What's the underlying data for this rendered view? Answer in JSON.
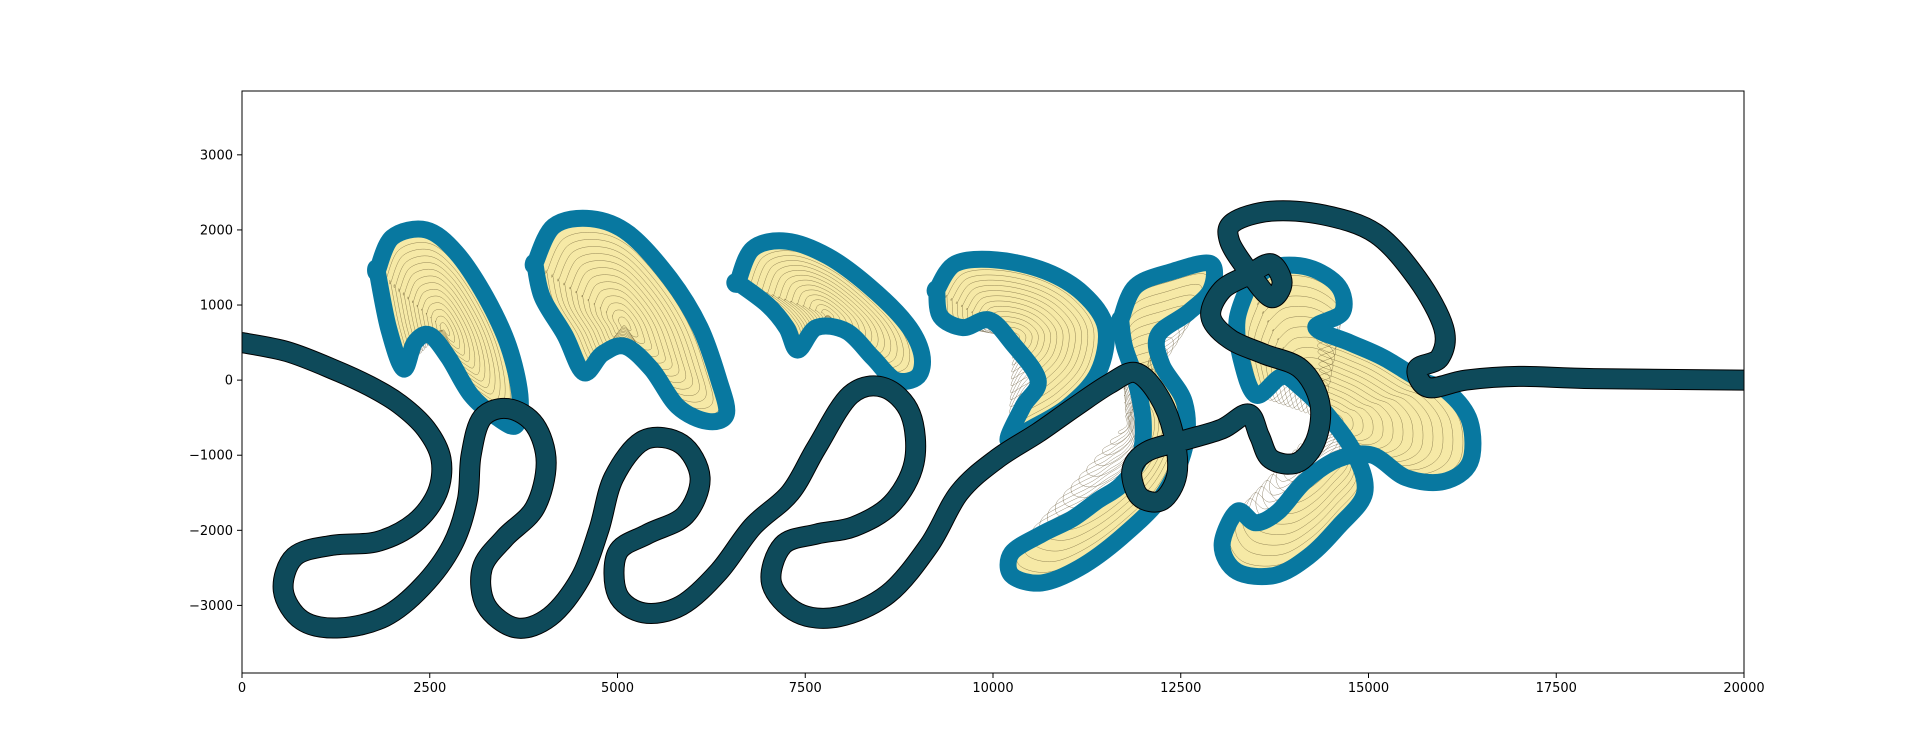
{
  "chart_data": {
    "type": "line",
    "title": "",
    "xlabel": "",
    "ylabel": "",
    "xlim": [
      0,
      20000
    ],
    "ylim": [
      -3900,
      3850
    ],
    "x_ticks": [
      0,
      2500,
      5000,
      7500,
      10000,
      12500,
      15000,
      17500,
      20000
    ],
    "x_tick_labels": [
      "0",
      "2500",
      "5000",
      "7500",
      "10000",
      "12500",
      "15000",
      "17500",
      "20000"
    ],
    "y_ticks": [
      3000,
      2000,
      1000,
      0,
      -1000,
      -2000,
      -3000
    ],
    "y_tick_labels": [
      "3000",
      "2000",
      "1000",
      "0",
      "−1000",
      "−2000",
      "−3000"
    ],
    "grid": false,
    "legend": "none",
    "colors": {
      "fill": "#f6e9a6",
      "fill_line": "#5a4a24",
      "channel_dark": "#0e4a5a",
      "channel_light": "#0878a0"
    },
    "series": [
      {
        "values": [
          [
            0,
            500
          ],
          [
            600,
            380
          ],
          [
            1200,
            150
          ],
          [
            1700,
            -80
          ],
          [
            2100,
            -320
          ],
          [
            2450,
            -650
          ],
          [
            2650,
            -1050
          ],
          [
            2600,
            -1500
          ],
          [
            2300,
            -1900
          ],
          [
            1800,
            -2150
          ],
          [
            1200,
            -2200
          ],
          [
            700,
            -2350
          ],
          [
            550,
            -2800
          ],
          [
            800,
            -3200
          ],
          [
            1300,
            -3300
          ],
          [
            1900,
            -3150
          ],
          [
            2400,
            -2750
          ],
          [
            2800,
            -2200
          ],
          [
            3000,
            -1600
          ],
          [
            3050,
            -1000
          ],
          [
            3200,
            -500
          ],
          [
            3550,
            -380
          ],
          [
            3900,
            -600
          ],
          [
            4050,
            -1100
          ],
          [
            3900,
            -1700
          ],
          [
            3500,
            -2100
          ],
          [
            3200,
            -2500
          ],
          [
            3250,
            -3000
          ],
          [
            3650,
            -3300
          ],
          [
            4100,
            -3150
          ],
          [
            4500,
            -2650
          ],
          [
            4750,
            -2000
          ],
          [
            4950,
            -1300
          ],
          [
            5350,
            -800
          ],
          [
            5850,
            -850
          ],
          [
            6100,
            -1300
          ],
          [
            5900,
            -1800
          ],
          [
            5400,
            -2050
          ],
          [
            5000,
            -2300
          ],
          [
            5000,
            -2850
          ],
          [
            5350,
            -3100
          ],
          [
            5850,
            -3000
          ],
          [
            6350,
            -2550
          ],
          [
            6800,
            -1950
          ],
          [
            7300,
            -1500
          ],
          [
            7650,
            -900
          ],
          [
            8100,
            -200
          ],
          [
            8550,
            -100
          ],
          [
            8900,
            -450
          ],
          [
            8950,
            -1100
          ],
          [
            8650,
            -1650
          ],
          [
            8150,
            -1950
          ],
          [
            7650,
            -2050
          ],
          [
            7200,
            -2200
          ],
          [
            7050,
            -2700
          ],
          [
            7400,
            -3100
          ],
          [
            7950,
            -3150
          ],
          [
            8600,
            -2850
          ],
          [
            9150,
            -2200
          ],
          [
            9550,
            -1500
          ],
          [
            10050,
            -1050
          ],
          [
            10600,
            -700
          ],
          [
            11100,
            -350
          ],
          [
            11550,
            -50
          ],
          [
            11900,
            100
          ],
          [
            12200,
            -200
          ],
          [
            12400,
            -700
          ],
          [
            12450,
            -1250
          ],
          [
            12250,
            -1600
          ],
          [
            11950,
            -1550
          ],
          [
            11850,
            -1200
          ],
          [
            12050,
            -950
          ],
          [
            12550,
            -800
          ],
          [
            13050,
            -650
          ],
          [
            13400,
            -450
          ],
          [
            13550,
            -750
          ],
          [
            13700,
            -1050
          ],
          [
            14050,
            -1100
          ],
          [
            14300,
            -800
          ],
          [
            14350,
            -300
          ],
          [
            14100,
            150
          ],
          [
            13600,
            350
          ],
          [
            13150,
            550
          ],
          [
            12900,
            850
          ],
          [
            13050,
            1200
          ],
          [
            13400,
            1400
          ],
          [
            13700,
            1550
          ],
          [
            13850,
            1300
          ],
          [
            13700,
            1100
          ],
          [
            13400,
            1450
          ],
          [
            13150,
            1850
          ],
          [
            13200,
            2100
          ],
          [
            13700,
            2250
          ],
          [
            14400,
            2200
          ],
          [
            15100,
            1950
          ],
          [
            15650,
            1350
          ],
          [
            16000,
            700
          ],
          [
            15950,
            300
          ],
          [
            15650,
            150
          ],
          [
            15800,
            -100
          ],
          [
            16300,
            0
          ],
          [
            17000,
            50
          ],
          [
            18000,
            20
          ],
          [
            20000,
            0
          ]
        ]
      },
      {
        "values": [
          [
            1800,
            1450
          ],
          [
            2000,
            1900
          ],
          [
            2450,
            2000
          ],
          [
            2850,
            1700
          ],
          [
            3250,
            1100
          ],
          [
            3550,
            450
          ],
          [
            3700,
            -200
          ],
          [
            3650,
            -600
          ],
          [
            3400,
            -500
          ],
          [
            3050,
            -200
          ],
          [
            2750,
            300
          ],
          [
            2500,
            600
          ],
          [
            2300,
            500
          ],
          [
            2150,
            150
          ],
          [
            1950,
            700
          ],
          [
            1800,
            1450
          ]
        ]
      },
      {
        "values": [
          [
            3900,
            1550
          ],
          [
            4150,
            2050
          ],
          [
            4650,
            2150
          ],
          [
            5150,
            1950
          ],
          [
            5700,
            1350
          ],
          [
            6100,
            700
          ],
          [
            6350,
            0
          ],
          [
            6450,
            -450
          ],
          [
            6200,
            -550
          ],
          [
            5800,
            -350
          ],
          [
            5450,
            150
          ],
          [
            5100,
            450
          ],
          [
            4800,
            350
          ],
          [
            4550,
            100
          ],
          [
            4300,
            600
          ],
          [
            4000,
            1100
          ],
          [
            3900,
            1550
          ]
        ]
      },
      {
        "values": [
          [
            6600,
            1300
          ],
          [
            6800,
            1750
          ],
          [
            7250,
            1850
          ],
          [
            7800,
            1650
          ],
          [
            8350,
            1250
          ],
          [
            8850,
            750
          ],
          [
            9050,
            350
          ],
          [
            9000,
            50
          ],
          [
            8700,
            0
          ],
          [
            8400,
            300
          ],
          [
            8050,
            650
          ],
          [
            7650,
            700
          ],
          [
            7400,
            400
          ],
          [
            7250,
            700
          ],
          [
            7000,
            1000
          ],
          [
            6600,
            1300
          ]
        ]
      },
      {
        "values": [
          [
            9250,
            1200
          ],
          [
            9500,
            1550
          ],
          [
            10050,
            1600
          ],
          [
            10700,
            1450
          ],
          [
            11200,
            1150
          ],
          [
            11500,
            700
          ],
          [
            11400,
            100
          ],
          [
            11000,
            -350
          ],
          [
            10500,
            -650
          ],
          [
            10200,
            -800
          ],
          [
            10400,
            -350
          ],
          [
            10600,
            0
          ],
          [
            10250,
            500
          ],
          [
            9950,
            800
          ],
          [
            9600,
            700
          ],
          [
            9300,
            850
          ],
          [
            9250,
            1200
          ]
        ]
      },
      {
        "values": [
          [
            11700,
            800
          ],
          [
            11900,
            1250
          ],
          [
            12400,
            1450
          ],
          [
            12900,
            1550
          ],
          [
            12900,
            1200
          ],
          [
            12600,
            900
          ],
          [
            12200,
            600
          ],
          [
            12250,
            200
          ],
          [
            12550,
            -300
          ],
          [
            12550,
            -900
          ],
          [
            12250,
            -1550
          ],
          [
            11700,
            -2100
          ],
          [
            11150,
            -2500
          ],
          [
            10650,
            -2700
          ],
          [
            10250,
            -2600
          ],
          [
            10250,
            -2300
          ],
          [
            10650,
            -2050
          ],
          [
            11050,
            -1850
          ],
          [
            11400,
            -1600
          ],
          [
            11700,
            -1400
          ],
          [
            11950,
            -1050
          ],
          [
            12000,
            -550
          ],
          [
            11900,
            0
          ],
          [
            11750,
            450
          ],
          [
            11700,
            800
          ]
        ]
      },
      {
        "values": [
          [
            13400,
            1250
          ],
          [
            13700,
            1500
          ],
          [
            14200,
            1500
          ],
          [
            14600,
            1250
          ],
          [
            14650,
            900
          ],
          [
            14300,
            700
          ],
          [
            14750,
            500
          ],
          [
            15200,
            300
          ],
          [
            15700,
            0
          ],
          [
            16050,
            -150
          ],
          [
            16350,
            -550
          ],
          [
            16350,
            -1100
          ],
          [
            16000,
            -1350
          ],
          [
            15500,
            -1300
          ],
          [
            15050,
            -1000
          ],
          [
            14600,
            -1050
          ],
          [
            14150,
            -1350
          ],
          [
            13800,
            -1750
          ],
          [
            13500,
            -1900
          ],
          [
            13250,
            -1750
          ],
          [
            13050,
            -2200
          ],
          [
            13250,
            -2550
          ],
          [
            13750,
            -2600
          ],
          [
            14200,
            -2350
          ],
          [
            14600,
            -1950
          ],
          [
            14950,
            -1500
          ],
          [
            14800,
            -950
          ],
          [
            14400,
            -400
          ],
          [
            14100,
            -100
          ],
          [
            13850,
            50
          ],
          [
            13500,
            -200
          ],
          [
            13300,
            300
          ],
          [
            13250,
            800
          ],
          [
            13400,
            1250
          ]
        ]
      }
    ]
  }
}
